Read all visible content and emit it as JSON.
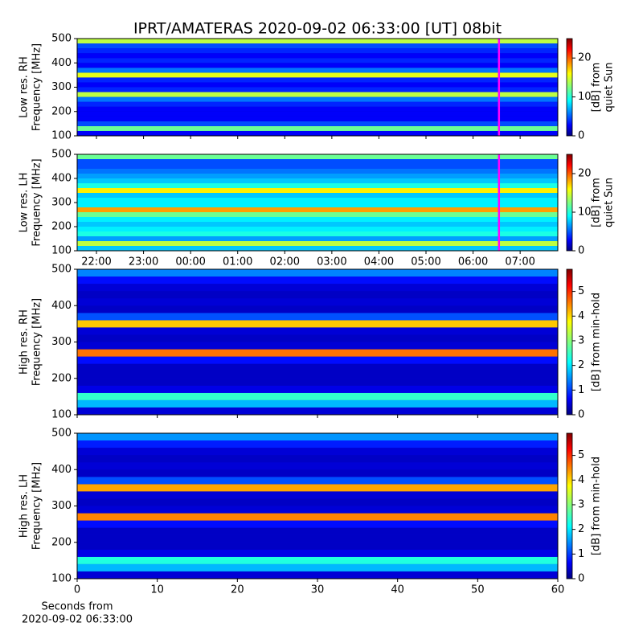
{
  "chart_data": [
    {
      "type": "heatmap",
      "title": "IPRT/AMATERAS 2020-09-02 06:33:00 [UT]   08bit",
      "ylabel": [
        "Low res. RH",
        "Frequency [MHz]"
      ],
      "ylim": [
        100,
        500
      ],
      "yticks": [
        100,
        200,
        300,
        400,
        500
      ],
      "xlim": [
        21.59,
        31.8
      ],
      "xticks": [
        {
          "value": 22,
          "label": "22:00"
        },
        {
          "value": 23,
          "label": "23:00"
        },
        {
          "value": 24,
          "label": "00:00"
        },
        {
          "value": 25,
          "label": "01:00"
        },
        {
          "value": 26,
          "label": "02:00"
        },
        {
          "value": 27,
          "label": "03:00"
        },
        {
          "value": 28,
          "label": "04:00"
        },
        {
          "value": 29,
          "label": "05:00"
        },
        {
          "value": 30,
          "label": "06:00"
        },
        {
          "value": 31,
          "label": "07:00"
        }
      ],
      "show_xticklabels": false,
      "marker_x": 30.55,
      "marker_color": "#ff00ff",
      "y": [
        110,
        130,
        150,
        170,
        190,
        210,
        230,
        250,
        270,
        290,
        310,
        330,
        350,
        370,
        390,
        410,
        430,
        450,
        470,
        490
      ],
      "values": [
        3,
        12,
        5,
        3,
        3,
        3,
        4,
        6,
        14,
        4,
        3,
        4,
        15,
        6,
        3,
        4,
        3,
        4,
        5,
        14
      ],
      "clim": [
        0,
        25
      ],
      "cticks": [
        0,
        10,
        20
      ],
      "colorbar_label": [
        "[dB] from",
        "quiet Sun"
      ]
    },
    {
      "type": "heatmap",
      "ylabel": [
        "Low res. LH",
        "Frequency [MHz]"
      ],
      "ylim": [
        100,
        500
      ],
      "yticks": [
        100,
        200,
        300,
        400,
        500
      ],
      "xlim": [
        21.59,
        31.8
      ],
      "xticks": [
        {
          "value": 22,
          "label": "22:00"
        },
        {
          "value": 23,
          "label": "23:00"
        },
        {
          "value": 24,
          "label": "00:00"
        },
        {
          "value": 25,
          "label": "01:00"
        },
        {
          "value": 26,
          "label": "02:00"
        },
        {
          "value": 27,
          "label": "03:00"
        },
        {
          "value": 28,
          "label": "04:00"
        },
        {
          "value": 29,
          "label": "05:00"
        },
        {
          "value": 30,
          "label": "06:00"
        },
        {
          "value": 31,
          "label": "07:00"
        }
      ],
      "show_xticklabels": true,
      "marker_x": 30.55,
      "marker_color": "#ff00ff",
      "y": [
        110,
        130,
        150,
        170,
        190,
        210,
        230,
        250,
        270,
        290,
        310,
        330,
        350,
        370,
        390,
        410,
        430,
        450,
        470,
        490
      ],
      "values": [
        8,
        14,
        7,
        10,
        9,
        8,
        9,
        12,
        18,
        9,
        9,
        8,
        16,
        10,
        8,
        7,
        6,
        5,
        5,
        12
      ],
      "clim": [
        0,
        25
      ],
      "cticks": [
        0,
        10,
        20
      ],
      "colorbar_label": [
        "[dB] from",
        "quiet Sun"
      ]
    },
    {
      "type": "heatmap",
      "ylabel": [
        "High res. RH",
        "Frequency [MHz]"
      ],
      "ylim": [
        100,
        500
      ],
      "yticks": [
        100,
        200,
        300,
        400,
        500
      ],
      "xlim": [
        0,
        60
      ],
      "xticks": [
        0,
        10,
        20,
        30,
        40,
        50,
        60
      ],
      "show_xticklabels": false,
      "y": [
        110,
        130,
        150,
        170,
        190,
        210,
        230,
        250,
        270,
        290,
        310,
        330,
        350,
        370,
        390,
        410,
        430,
        450,
        470,
        490
      ],
      "values": [
        0.5,
        1.8,
        2.5,
        0.6,
        0.4,
        0.4,
        0.4,
        0.8,
        4.5,
        0.5,
        0.4,
        0.5,
        4,
        1.2,
        0.4,
        0.5,
        0.4,
        0.5,
        0.8,
        1.5
      ],
      "clim": [
        0,
        5.9
      ],
      "cticks": [
        0,
        1,
        2,
        3,
        4,
        5
      ],
      "colorbar_label": [
        "[dB] from min-hold"
      ]
    },
    {
      "type": "heatmap",
      "ylabel": [
        "High res. LH",
        "Frequency [MHz]"
      ],
      "ylim": [
        100,
        500
      ],
      "yticks": [
        100,
        200,
        300,
        400,
        500
      ],
      "xlim": [
        0,
        60
      ],
      "xticks": [
        0,
        10,
        20,
        30,
        40,
        50,
        60
      ],
      "show_xticklabels": true,
      "xlabel": [
        "Seconds from",
        "2020-09-02 06:33:00"
      ],
      "y": [
        110,
        130,
        150,
        170,
        190,
        210,
        230,
        250,
        270,
        290,
        310,
        330,
        350,
        370,
        390,
        410,
        430,
        450,
        470,
        490
      ],
      "values": [
        0.5,
        1.8,
        2.4,
        0.6,
        0.4,
        0.4,
        0.4,
        0.8,
        4.4,
        0.5,
        0.4,
        0.5,
        4.2,
        1.2,
        0.4,
        0.5,
        0.4,
        0.5,
        0.9,
        1.6
      ],
      "clim": [
        0,
        5.9
      ],
      "cticks": [
        0,
        1,
        2,
        3,
        4,
        5
      ],
      "colorbar_label": [
        "[dB] from min-hold"
      ]
    }
  ]
}
